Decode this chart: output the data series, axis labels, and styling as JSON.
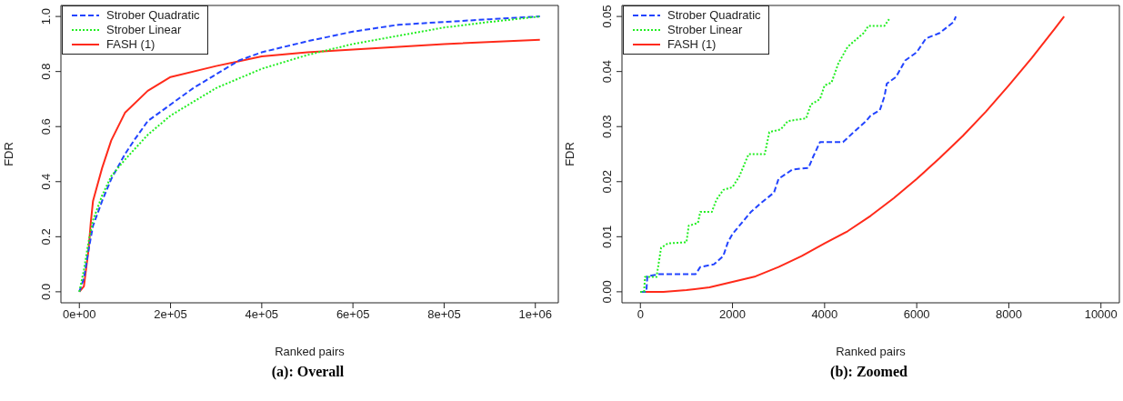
{
  "chart_data": [
    {
      "type": "line",
      "title": "(a): Overall",
      "xlabel": "Ranked pairs",
      "ylabel": "FDR",
      "legend": "top left",
      "grid": false,
      "xlim": [
        -40400,
        1050400
      ],
      "ylim": [
        -0.04,
        1.04
      ],
      "xticks": [
        {
          "value": 0,
          "label": "0e+00"
        },
        {
          "value": 200000,
          "label": "2e+05"
        },
        {
          "value": 400000,
          "label": "4e+05"
        },
        {
          "value": 600000,
          "label": "6e+05"
        },
        {
          "value": 800000,
          "label": "8e+05"
        },
        {
          "value": 1000000,
          "label": "1e+06"
        }
      ],
      "yticks": [
        {
          "value": 0,
          "label": "0.0"
        },
        0.2,
        0.4,
        0.6,
        0.8,
        {
          "value": 1,
          "label": "1.0"
        }
      ],
      "series": [
        {
          "name": "Strober Quadratic",
          "color": "#2244ff",
          "line_style": "dashed",
          "x": [
            0,
            10000,
            20000,
            30000,
            50000,
            70000,
            100000,
            120000,
            150000,
            200000,
            250000,
            300000,
            350000,
            400000,
            500000,
            600000,
            700000,
            800000,
            900000,
            1010000
          ],
          "values": [
            0,
            0.05,
            0.15,
            0.24,
            0.33,
            0.41,
            0.5,
            0.55,
            0.62,
            0.68,
            0.74,
            0.79,
            0.84,
            0.87,
            0.91,
            0.945,
            0.97,
            0.98,
            0.99,
            1.0
          ]
        },
        {
          "name": "Strober Linear",
          "color": "#22ee22",
          "line_style": "dotted",
          "x": [
            0,
            10000,
            20000,
            30000,
            50000,
            70000,
            100000,
            150000,
            200000,
            250000,
            300000,
            400000,
            500000,
            600000,
            700000,
            800000,
            900000,
            1010000
          ],
          "values": [
            0,
            0.08,
            0.18,
            0.26,
            0.35,
            0.42,
            0.48,
            0.57,
            0.64,
            0.69,
            0.74,
            0.81,
            0.86,
            0.9,
            0.93,
            0.96,
            0.98,
            1.0
          ]
        },
        {
          "name": "FASH (1)",
          "color": "#ff2a1a",
          "line_style": "solid",
          "x": [
            0,
            10000,
            20000,
            25000,
            30000,
            40000,
            50000,
            70000,
            100000,
            150000,
            200000,
            300000,
            400000,
            500000,
            600000,
            800000,
            1010000
          ],
          "values": [
            0,
            0.02,
            0.15,
            0.25,
            0.33,
            0.39,
            0.45,
            0.55,
            0.65,
            0.73,
            0.78,
            0.82,
            0.855,
            0.87,
            0.88,
            0.9,
            0.915
          ]
        }
      ]
    },
    {
      "type": "line",
      "title": "(b): Zoomed",
      "xlabel": "Ranked pairs",
      "ylabel": "FDR",
      "legend": "top left",
      "grid": false,
      "xlim": [
        -400,
        10400
      ],
      "ylim": [
        -0.002,
        0.052
      ],
      "xticks": [
        0,
        2000,
        4000,
        6000,
        8000,
        10000
      ],
      "yticks": [
        {
          "value": 0,
          "label": "0.00"
        },
        {
          "value": 0.01,
          "label": "0.01"
        },
        {
          "value": 0.02,
          "label": "0.02"
        },
        {
          "value": 0.03,
          "label": "0.03"
        },
        {
          "value": 0.04,
          "label": "0.04"
        },
        {
          "value": 0.05,
          "label": "0.05"
        }
      ],
      "series": [
        {
          "name": "Strober Quadratic",
          "color": "#2244ff",
          "line_style": "dashed",
          "x": [
            0,
            130,
            150,
            400,
            1200,
            1300,
            1600,
            1800,
            1900,
            2000,
            2150,
            2400,
            2600,
            2900,
            3000,
            3300,
            3650,
            3750,
            3900,
            4400,
            4700,
            4900,
            5000,
            5200,
            5300,
            5350,
            5550,
            5750,
            6000,
            6200,
            6500,
            6800,
            6850
          ],
          "values": [
            0,
            0,
            0.0028,
            0.0032,
            0.0032,
            0.0045,
            0.005,
            0.0065,
            0.009,
            0.0105,
            0.012,
            0.0145,
            0.016,
            0.018,
            0.0205,
            0.0222,
            0.0225,
            0.0245,
            0.0272,
            0.0272,
            0.0295,
            0.031,
            0.032,
            0.033,
            0.0355,
            0.0378,
            0.039,
            0.042,
            0.0435,
            0.046,
            0.047,
            0.049,
            0.05
          ]
        },
        {
          "name": "Strober Linear",
          "color": "#22ee22",
          "line_style": "dotted",
          "x": [
            0,
            80,
            100,
            350,
            450,
            600,
            1000,
            1050,
            1250,
            1300,
            1550,
            1650,
            1800,
            2000,
            2150,
            2350,
            2700,
            2800,
            3050,
            3200,
            3600,
            3700,
            3900,
            4000,
            4150,
            4300,
            4500,
            4850,
            4950,
            5300,
            5400
          ],
          "values": [
            0,
            0,
            0.0027,
            0.0027,
            0.008,
            0.0088,
            0.009,
            0.012,
            0.0125,
            0.0145,
            0.0145,
            0.0167,
            0.0185,
            0.019,
            0.021,
            0.025,
            0.025,
            0.029,
            0.0295,
            0.031,
            0.0315,
            0.034,
            0.035,
            0.0375,
            0.038,
            0.0415,
            0.0445,
            0.047,
            0.0483,
            0.0483,
            0.0495
          ]
        },
        {
          "name": "FASH (1)",
          "color": "#ff2a1a",
          "line_style": "solid",
          "x": [
            0,
            500,
            1000,
            1500,
            2000,
            2500,
            3000,
            3500,
            4000,
            4500,
            5000,
            5500,
            6000,
            6500,
            7000,
            7500,
            8000,
            8500,
            9000,
            9200
          ],
          "values": [
            0,
            0,
            0.0003,
            0.0008,
            0.0018,
            0.0028,
            0.0045,
            0.0065,
            0.0088,
            0.011,
            0.0138,
            0.017,
            0.0205,
            0.0243,
            0.0283,
            0.0327,
            0.0375,
            0.0425,
            0.0478,
            0.05
          ]
        }
      ]
    }
  ]
}
